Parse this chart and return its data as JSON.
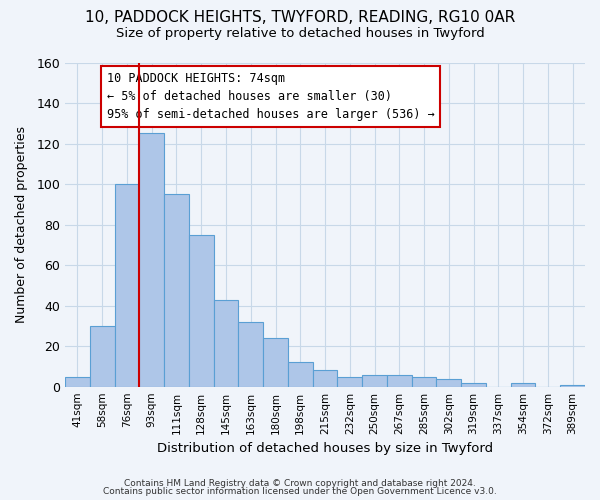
{
  "title_line1": "10, PADDOCK HEIGHTS, TWYFORD, READING, RG10 0AR",
  "title_line2": "Size of property relative to detached houses in Twyford",
  "xlabel": "Distribution of detached houses by size in Twyford",
  "ylabel": "Number of detached properties",
  "bar_labels": [
    "41sqm",
    "58sqm",
    "76sqm",
    "93sqm",
    "111sqm",
    "128sqm",
    "145sqm",
    "163sqm",
    "180sqm",
    "198sqm",
    "215sqm",
    "232sqm",
    "250sqm",
    "267sqm",
    "285sqm",
    "302sqm",
    "319sqm",
    "337sqm",
    "354sqm",
    "372sqm",
    "389sqm"
  ],
  "bar_values": [
    5,
    30,
    100,
    125,
    95,
    75,
    43,
    32,
    24,
    12,
    8,
    5,
    6,
    6,
    5,
    4,
    2,
    0,
    2,
    0,
    1
  ],
  "bar_color": "#aec6e8",
  "bar_edge_color": "#5a9fd4",
  "grid_color": "#c8d8e8",
  "background_color": "#f0f4fa",
  "vline_x": 2.5,
  "vline_color": "#cc0000",
  "annotation_line1": "10 PADDOCK HEIGHTS: 74sqm",
  "annotation_line2": "← 5% of detached houses are smaller (30)",
  "annotation_line3": "95% of semi-detached houses are larger (536) →",
  "annotation_box_color": "#ffffff",
  "annotation_border_color": "#cc0000",
  "ylim": [
    0,
    160
  ],
  "yticks": [
    0,
    20,
    40,
    60,
    80,
    100,
    120,
    140,
    160
  ],
  "footer_line1": "Contains HM Land Registry data © Crown copyright and database right 2024.",
  "footer_line2": "Contains public sector information licensed under the Open Government Licence v3.0."
}
